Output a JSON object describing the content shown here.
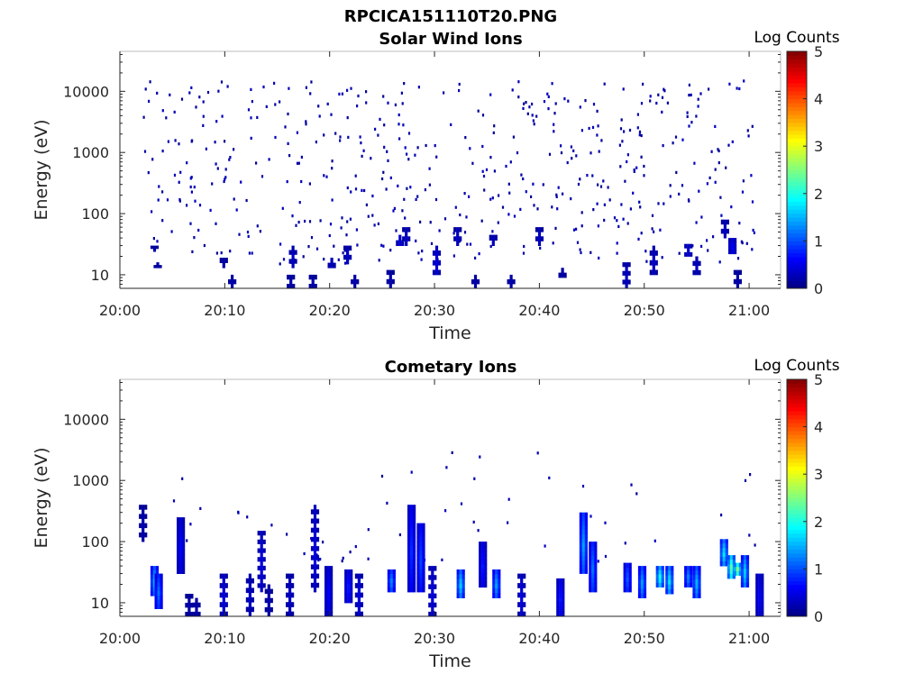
{
  "figure_title": "RPCICA151110T20.PNG",
  "chart_data": [
    {
      "type": "heatmap",
      "title": "Solar Wind Ions",
      "xlabel": "Time",
      "ylabel": "Energy (eV)",
      "yscale": "log",
      "xlim_minutes": [
        0,
        63
      ],
      "ylim": [
        6,
        45000
      ],
      "xticks": [
        "20:00",
        "20:10",
        "20:20",
        "20:30",
        "20:40",
        "20:50",
        "21:00"
      ],
      "yticks": [
        "10",
        "100",
        "1000",
        "10000"
      ],
      "colorbar": {
        "label": "Log Counts",
        "range": [
          0,
          5
        ],
        "ticks": [
          "0",
          "1",
          "2",
          "3",
          "4",
          "5"
        ],
        "colormap": "jet"
      },
      "intensity_columns": [
        {
          "t": 3.3,
          "e": [
            24,
            30
          ],
          "v": 0.2
        },
        {
          "t": 3.6,
          "e": [
            13,
            16
          ],
          "v": 0.2
        },
        {
          "t": 9.9,
          "e": [
            13,
            19
          ],
          "v": 0.2
        },
        {
          "t": 10.7,
          "e": [
            6,
            10
          ],
          "v": 0.2
        },
        {
          "t": 16.3,
          "e": [
            6,
            10
          ],
          "v": 0.2
        },
        {
          "t": 16.5,
          "e": [
            13,
            30
          ],
          "v": 0.3
        },
        {
          "t": 18.4,
          "e": [
            6,
            10
          ],
          "v": 0.2
        },
        {
          "t": 20.2,
          "e": [
            13,
            19
          ],
          "v": 0.3
        },
        {
          "t": 21.7,
          "e": [
            15,
            30
          ],
          "v": 0.3
        },
        {
          "t": 22.4,
          "e": [
            6,
            10
          ],
          "v": 0.2
        },
        {
          "t": 25.8,
          "e": [
            6,
            12
          ],
          "v": 0.2
        },
        {
          "t": 26.7,
          "e": [
            30,
            45
          ],
          "v": 0.4
        },
        {
          "t": 27.3,
          "e": [
            30,
            60
          ],
          "v": 0.3
        },
        {
          "t": 30.2,
          "e": [
            10,
            30
          ],
          "v": 0.4
        },
        {
          "t": 32.2,
          "e": [
            30,
            60
          ],
          "v": 0.3
        },
        {
          "t": 33.9,
          "e": [
            6,
            10
          ],
          "v": 0.2
        },
        {
          "t": 35.6,
          "e": [
            30,
            45
          ],
          "v": 0.3
        },
        {
          "t": 37.3,
          "e": [
            6,
            10
          ],
          "v": 0.2
        },
        {
          "t": 40.0,
          "e": [
            30,
            60
          ],
          "v": 0.3
        },
        {
          "t": 42.2,
          "e": [
            9,
            13
          ],
          "v": 0.2
        },
        {
          "t": 48.3,
          "e": [
            6,
            16
          ],
          "v": 0.3
        },
        {
          "t": 50.9,
          "e": [
            10,
            30
          ],
          "v": 0.3
        },
        {
          "t": 54.2,
          "e": [
            20,
            32
          ],
          "v": 0.4
        },
        {
          "t": 55.0,
          "e": [
            10,
            20
          ],
          "v": 0.3
        },
        {
          "t": 57.7,
          "e": [
            40,
            80
          ],
          "v": 0.3
        },
        {
          "t": 58.4,
          "e": [
            22,
            40
          ],
          "v": 0.5
        },
        {
          "t": 58.9,
          "e": [
            6,
            12
          ],
          "v": 0.2
        }
      ],
      "scatter_seed": 20151110,
      "scatter_count": 520
    },
    {
      "type": "heatmap",
      "title": "Cometary Ions",
      "xlabel": "Time",
      "ylabel": "Energy (eV)",
      "yscale": "log",
      "xlim_minutes": [
        0,
        63
      ],
      "ylim": [
        6,
        45000
      ],
      "xticks": [
        "20:00",
        "20:10",
        "20:20",
        "20:30",
        "20:40",
        "20:50",
        "21:00"
      ],
      "yticks": [
        "10",
        "100",
        "1000",
        "10000"
      ],
      "colorbar": {
        "label": "Log Counts",
        "range": [
          0,
          5
        ],
        "ticks": [
          "0",
          "1",
          "2",
          "3",
          "4",
          "5"
        ],
        "colormap": "jet"
      },
      "intensity_columns": [
        {
          "t": 2.2,
          "e": [
            100,
            400
          ],
          "v": 0.2
        },
        {
          "t": 3.3,
          "e": [
            13,
            40
          ],
          "v": 1.3
        },
        {
          "t": 3.7,
          "e": [
            8,
            30
          ],
          "v": 1.0
        },
        {
          "t": 5.8,
          "e": [
            30,
            250
          ],
          "v": 0.5
        },
        {
          "t": 6.6,
          "e": [
            6,
            14
          ],
          "v": 0.2
        },
        {
          "t": 7.3,
          "e": [
            6,
            12
          ],
          "v": 0.2
        },
        {
          "t": 9.9,
          "e": [
            6,
            30
          ],
          "v": 0.4
        },
        {
          "t": 12.4,
          "e": [
            6,
            30
          ],
          "v": 0.3
        },
        {
          "t": 13.5,
          "e": [
            15,
            150
          ],
          "v": 0.4
        },
        {
          "t": 14.2,
          "e": [
            6,
            20
          ],
          "v": 0.2
        },
        {
          "t": 16.2,
          "e": [
            6,
            30
          ],
          "v": 0.3
        },
        {
          "t": 18.6,
          "e": [
            15,
            400
          ],
          "v": 0.4
        },
        {
          "t": 19.9,
          "e": [
            6,
            40
          ],
          "v": 0.5
        },
        {
          "t": 21.8,
          "e": [
            10,
            35
          ],
          "v": 0.6
        },
        {
          "t": 22.8,
          "e": [
            6,
            30
          ],
          "v": 0.4
        },
        {
          "t": 25.9,
          "e": [
            15,
            35
          ],
          "v": 1.1
        },
        {
          "t": 27.8,
          "e": [
            15,
            400
          ],
          "v": 0.7
        },
        {
          "t": 28.7,
          "e": [
            15,
            200
          ],
          "v": 0.8
        },
        {
          "t": 29.8,
          "e": [
            6,
            40
          ],
          "v": 0.4
        },
        {
          "t": 32.5,
          "e": [
            12,
            35
          ],
          "v": 1.4
        },
        {
          "t": 34.6,
          "e": [
            18,
            100
          ],
          "v": 0.6
        },
        {
          "t": 35.9,
          "e": [
            12,
            35
          ],
          "v": 1.2
        },
        {
          "t": 38.3,
          "e": [
            6,
            30
          ],
          "v": 0.4
        },
        {
          "t": 42.0,
          "e": [
            6,
            25
          ],
          "v": 0.6
        },
        {
          "t": 44.2,
          "e": [
            30,
            300
          ],
          "v": 1.2
        },
        {
          "t": 45.1,
          "e": [
            15,
            100
          ],
          "v": 1.0
        },
        {
          "t": 48.4,
          "e": [
            15,
            45
          ],
          "v": 0.9
        },
        {
          "t": 49.8,
          "e": [
            12,
            40
          ],
          "v": 1.2
        },
        {
          "t": 51.5,
          "e": [
            18,
            40
          ],
          "v": 1.7
        },
        {
          "t": 52.4,
          "e": [
            14,
            40
          ],
          "v": 1.5
        },
        {
          "t": 54.2,
          "e": [
            18,
            40
          ],
          "v": 1.1
        },
        {
          "t": 55.0,
          "e": [
            12,
            40
          ],
          "v": 1.3
        },
        {
          "t": 57.6,
          "e": [
            40,
            110
          ],
          "v": 1.5
        },
        {
          "t": 58.3,
          "e": [
            25,
            60
          ],
          "v": 2.0
        },
        {
          "t": 58.9,
          "e": [
            28,
            45
          ],
          "v": 2.2
        },
        {
          "t": 59.6,
          "e": [
            18,
            60
          ],
          "v": 1.4
        },
        {
          "t": 61.0,
          "e": [
            6,
            30
          ],
          "v": 0.5
        }
      ],
      "scatter_seed": 7741,
      "scatter_count": 60
    }
  ]
}
